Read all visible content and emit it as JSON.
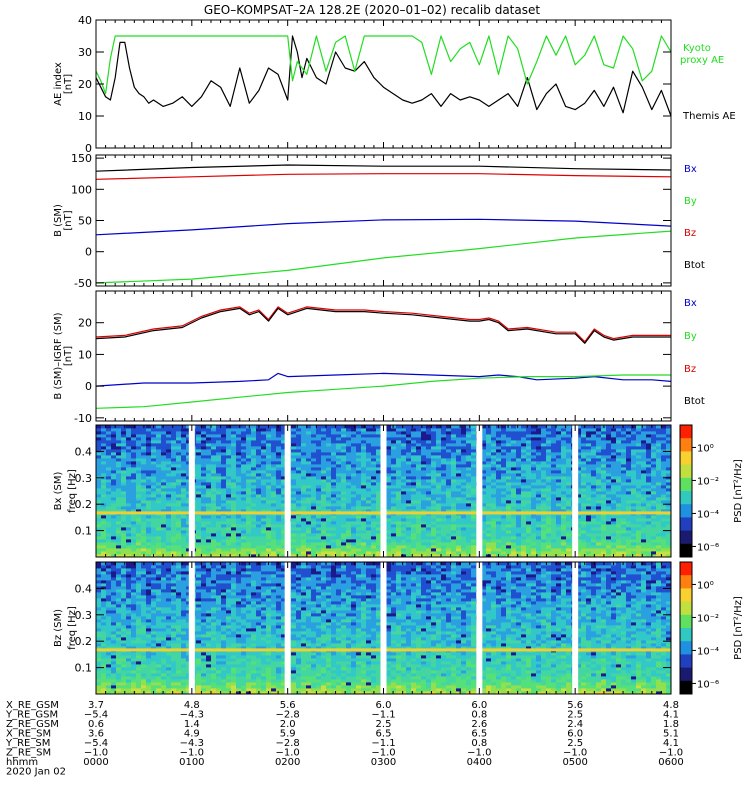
{
  "title": "GEO–KOMPSAT–2A 128.2E (2020–01–02) recalib dataset",
  "colors": {
    "themis": "#000000",
    "kyoto": "#22dd22",
    "bx": "#0000cc",
    "by": "#22dd22",
    "bz": "#dd0000",
    "btot": "#000000"
  },
  "chart_data": [
    {
      "id": "ae",
      "type": "line",
      "ylabel": "AE index",
      "yunit": "[nT]",
      "ylim": [
        0,
        40
      ],
      "yticks": [
        0,
        10,
        20,
        30,
        40
      ],
      "x_hours": [
        0,
        6
      ],
      "series": [
        {
          "name": "Themis AE",
          "color": "#000000",
          "x": [
            0,
            0.05,
            0.1,
            0.15,
            0.2,
            0.25,
            0.3,
            0.35,
            0.4,
            0.45,
            0.5,
            0.55,
            0.6,
            0.7,
            0.8,
            0.9,
            1.0,
            1.1,
            1.2,
            1.3,
            1.4,
            1.5,
            1.6,
            1.7,
            1.8,
            1.9,
            2.0,
            2.05,
            2.1,
            2.15,
            2.2,
            2.3,
            2.4,
            2.5,
            2.6,
            2.7,
            2.8,
            2.9,
            3.0,
            3.1,
            3.2,
            3.3,
            3.4,
            3.5,
            3.6,
            3.7,
            3.8,
            3.9,
            4.0,
            4.1,
            4.2,
            4.3,
            4.4,
            4.5,
            4.6,
            4.7,
            4.8,
            4.9,
            5.0,
            5.1,
            5.2,
            5.3,
            5.4,
            5.5,
            5.6,
            5.7,
            5.8,
            5.9,
            6.0
          ],
          "values": [
            22,
            19,
            16,
            15,
            22,
            33,
            33,
            25,
            19,
            17,
            16,
            14,
            15,
            13,
            14,
            16,
            13,
            16,
            21,
            19,
            13,
            25,
            14,
            18,
            25,
            23,
            15,
            35,
            30,
            22,
            28,
            22,
            20,
            30,
            25,
            24,
            27,
            22,
            19,
            17,
            15,
            14,
            15,
            17,
            13,
            17,
            15,
            16,
            15,
            13,
            15,
            17,
            13,
            22,
            12,
            17,
            20,
            13,
            12,
            14,
            18,
            13,
            19,
            11,
            24,
            19,
            12,
            18,
            10
          ]
        },
        {
          "name": "Kyoto\nproxy AE",
          "color": "#22dd22",
          "x": [
            0,
            0.05,
            0.1,
            0.15,
            0.2,
            0.25,
            0.3,
            0.4,
            0.6,
            0.8,
            1.0,
            1.2,
            1.4,
            1.6,
            1.8,
            1.9,
            2.0,
            2.05,
            2.1,
            2.2,
            2.3,
            2.4,
            2.5,
            2.6,
            2.7,
            2.8,
            2.9,
            3.0,
            3.1,
            3.2,
            3.3,
            3.4,
            3.5,
            3.6,
            3.7,
            3.8,
            3.9,
            4.0,
            4.1,
            4.2,
            4.3,
            4.4,
            4.5,
            4.6,
            4.7,
            4.8,
            4.9,
            5.0,
            5.1,
            5.2,
            5.3,
            5.4,
            5.5,
            5.6,
            5.7,
            5.8,
            5.9,
            6.0
          ],
          "values": [
            24,
            21,
            17,
            28,
            35,
            35,
            35,
            35,
            35,
            35,
            35,
            35,
            35,
            35,
            35,
            35,
            35,
            21,
            27,
            23,
            35,
            24,
            33,
            35,
            24,
            35,
            35,
            35,
            35,
            35,
            35,
            33,
            23,
            35,
            27,
            31,
            33,
            26,
            35,
            23,
            35,
            31,
            20,
            27,
            35,
            29,
            35,
            26,
            29,
            35,
            26,
            25,
            35,
            31,
            21,
            24,
            35,
            30
          ]
        }
      ]
    },
    {
      "id": "b",
      "type": "line",
      "ylabel": "B (SM)",
      "yunit": "[nT]",
      "ylim": [
        -55,
        155
      ],
      "yticks": [
        -50,
        0,
        50,
        100,
        150
      ],
      "x_hours": [
        0,
        6
      ],
      "series": [
        {
          "name": "Bx",
          "color": "#0000cc",
          "x": [
            0,
            1,
            2,
            3,
            4,
            5,
            6
          ],
          "values": [
            27,
            35,
            45,
            51,
            52,
            49,
            41
          ]
        },
        {
          "name": "By",
          "color": "#22dd22",
          "x": [
            0,
            1,
            2,
            3,
            4,
            5,
            6
          ],
          "values": [
            -50,
            -44,
            -30,
            -10,
            5,
            22,
            33
          ]
        },
        {
          "name": "Bz",
          "color": "#dd0000",
          "x": [
            0,
            1,
            2,
            3,
            4,
            5,
            6
          ],
          "values": [
            116,
            120,
            124,
            125,
            125,
            122,
            120
          ]
        },
        {
          "name": "Btot",
          "color": "#000000",
          "x": [
            0,
            1,
            2,
            3,
            4,
            5,
            6
          ],
          "values": [
            129,
            135,
            139,
            137,
            137,
            133,
            131
          ]
        }
      ]
    },
    {
      "id": "dB",
      "type": "line",
      "ylabel": "B (SM)–IGRF (SM)",
      "yunit": "[nT]",
      "ylim": [
        -11,
        30
      ],
      "yticks": [
        -10,
        0,
        10,
        20
      ],
      "x_hours": [
        0,
        6
      ],
      "series": [
        {
          "name": "Bx",
          "color": "#0000cc",
          "x": [
            0,
            0.5,
            1.0,
            1.5,
            1.8,
            1.9,
            2.0,
            2.5,
            3.0,
            3.5,
            4.0,
            4.2,
            4.4,
            4.6,
            5.0,
            5.2,
            5.5,
            5.8,
            6.0
          ],
          "values": [
            0,
            1,
            1,
            1.5,
            2,
            4,
            3,
            3.5,
            4,
            3.5,
            3,
            3.5,
            3,
            2,
            2.5,
            3,
            2,
            2,
            1.5
          ]
        },
        {
          "name": "By",
          "color": "#22dd22",
          "x": [
            0,
            0.5,
            1.0,
            1.5,
            2.0,
            2.5,
            3.0,
            3.5,
            4.0,
            4.5,
            5.0,
            5.5,
            6.0
          ],
          "values": [
            -7,
            -6.5,
            -5,
            -3.5,
            -2,
            -1,
            0,
            1.5,
            2.5,
            3,
            3,
            3.5,
            3.5
          ]
        },
        {
          "name": "Bz",
          "color": "#dd0000",
          "x": [
            0,
            0.3,
            0.6,
            0.9,
            1.1,
            1.3,
            1.5,
            1.6,
            1.7,
            1.8,
            1.9,
            2.0,
            2.2,
            2.5,
            2.8,
            3.0,
            3.3,
            3.6,
            3.9,
            4.0,
            4.1,
            4.2,
            4.3,
            4.5,
            4.8,
            5.0,
            5.1,
            5.2,
            5.3,
            5.4,
            5.6,
            5.8,
            6.0
          ],
          "values": [
            15.5,
            16,
            18,
            19,
            22,
            24,
            25,
            23,
            24,
            21,
            25,
            23,
            25,
            24,
            24,
            23.5,
            23,
            22,
            21,
            21,
            21.5,
            20.5,
            18,
            18.5,
            17,
            17,
            14,
            18,
            16,
            15,
            16,
            16,
            16
          ]
        },
        {
          "name": "Btot",
          "color": "#000000",
          "x": [
            0,
            0.3,
            0.6,
            0.9,
            1.1,
            1.3,
            1.5,
            1.6,
            1.7,
            1.8,
            1.9,
            2.0,
            2.2,
            2.5,
            2.8,
            3.0,
            3.3,
            3.6,
            3.9,
            4.0,
            4.1,
            4.2,
            4.3,
            4.5,
            4.8,
            5.0,
            5.1,
            5.2,
            5.3,
            5.4,
            5.6,
            5.8,
            6.0
          ],
          "values": [
            15,
            15.5,
            17.5,
            18.5,
            21.5,
            23.5,
            24.5,
            22.5,
            23.5,
            20.5,
            24.5,
            22.5,
            24.5,
            23.5,
            23.5,
            23,
            22.5,
            21.5,
            20.5,
            20.5,
            21,
            20,
            17.5,
            18,
            16.5,
            16.5,
            13.5,
            17.5,
            15.5,
            14.5,
            15.5,
            15.5,
            15.5
          ]
        }
      ]
    },
    {
      "id": "psd_bx",
      "type": "heatmap",
      "ylabel": "Bx (SM)",
      "yunit": "freq [Hz]",
      "ylim": [
        0,
        0.5
      ],
      "yticks": [
        0.1,
        0.2,
        0.3,
        0.4
      ],
      "colorbar_label": "PSD [nT²/Hz]",
      "colorbar_ticks": [
        "10⁰",
        "10⁻²",
        "10⁻⁴",
        "10⁻⁶"
      ],
      "data_gaps_at": [
        "0100",
        "0200",
        "0300",
        "0400",
        "0500"
      ],
      "line_at_hz": 0.167
    },
    {
      "id": "psd_bz",
      "type": "heatmap",
      "ylabel": "Bz (SM)",
      "yunit": "freq [Hz]",
      "ylim": [
        0,
        0.5
      ],
      "yticks": [
        0.1,
        0.2,
        0.3,
        0.4
      ],
      "colorbar_label": "PSD [nT²/Hz]",
      "colorbar_ticks": [
        "10⁰",
        "10⁻²",
        "10⁻⁴",
        "10⁻⁶"
      ],
      "data_gaps_at": [
        "0100",
        "0200",
        "0300",
        "0400",
        "0500"
      ],
      "line_at_hz": 0.167
    }
  ],
  "legend_b": [
    "Bx",
    "By",
    "Bz",
    "Btot"
  ],
  "ephemeris": {
    "labels": [
      "X_RE_GSM",
      "Y_RE_GSM",
      "Z_RE_GSM",
      "X_RE_SM",
      "Y_RE_SM",
      "Z_RE_SM",
      "hhmm"
    ],
    "columns": [
      [
        "3.7",
        "−5.4",
        "0.6",
        "3.6",
        "−5.4",
        "−1.0",
        "0000"
      ],
      [
        "4.8",
        "−4.3",
        "1.4",
        "4.9",
        "−4.3",
        "−1.0",
        "0100"
      ],
      [
        "5.6",
        "−2.8",
        "2.0",
        "5.9",
        "−2.8",
        "−1.0",
        "0200"
      ],
      [
        "6.0",
        "−1.1",
        "2.5",
        "6.5",
        "−1.1",
        "−1.0",
        "0300"
      ],
      [
        "6.0",
        "0.8",
        "2.6",
        "6.5",
        "0.8",
        "−1.0",
        "0400"
      ],
      [
        "5.6",
        "2.5",
        "2.4",
        "6.0",
        "2.5",
        "−1.0",
        "0500"
      ],
      [
        "4.8",
        "4.1",
        "1.8",
        "5.1",
        "4.1",
        "−1.0",
        "0600"
      ]
    ],
    "date": "2020 Jan 02"
  }
}
